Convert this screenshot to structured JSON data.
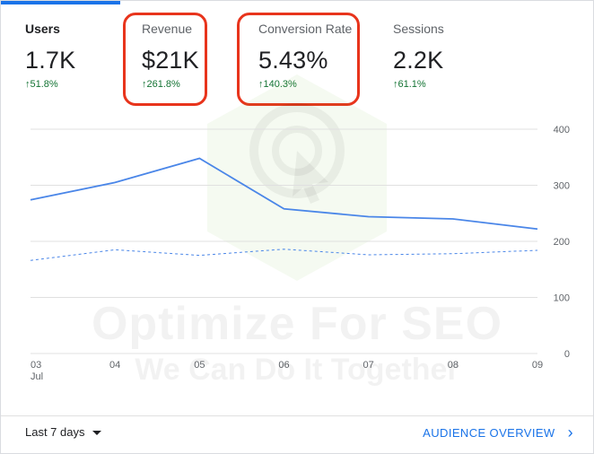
{
  "metrics": [
    {
      "label": "Users",
      "value": "1.7K",
      "delta": "51.8%",
      "active": true
    },
    {
      "label": "Revenue",
      "value": "$21K",
      "delta": "261.8%",
      "active": false
    },
    {
      "label": "Conversion Rate",
      "value": "5.43%",
      "delta": "140.3%",
      "active": false
    },
    {
      "label": "Sessions",
      "value": "2.2K",
      "delta": "61.1%",
      "active": false
    }
  ],
  "footer": {
    "range_label": "Last 7 days",
    "overview_label": "AUDIENCE OVERVIEW"
  },
  "watermark": {
    "line1": "Optimize For SEO",
    "line2": "We Can Do It Together"
  },
  "colors": {
    "primary": "#4a86e8",
    "positive": "#137333",
    "highlight": "#e8341c",
    "tab_accent": "#1a73e8"
  },
  "chart_data": {
    "type": "line",
    "categories": [
      "03",
      "04",
      "05",
      "06",
      "07",
      "08",
      "09"
    ],
    "x_sublabel": "Jul",
    "series": [
      {
        "style": "solid",
        "values": [
          274,
          305,
          348,
          258,
          244,
          240,
          222
        ]
      },
      {
        "style": "dashed",
        "values": [
          166,
          185,
          175,
          186,
          176,
          178,
          184
        ]
      }
    ],
    "y_ticks": [
      0,
      100,
      200,
      300,
      400
    ],
    "ylim": [
      0,
      400
    ],
    "grid": true,
    "yaxis_position": "right"
  }
}
